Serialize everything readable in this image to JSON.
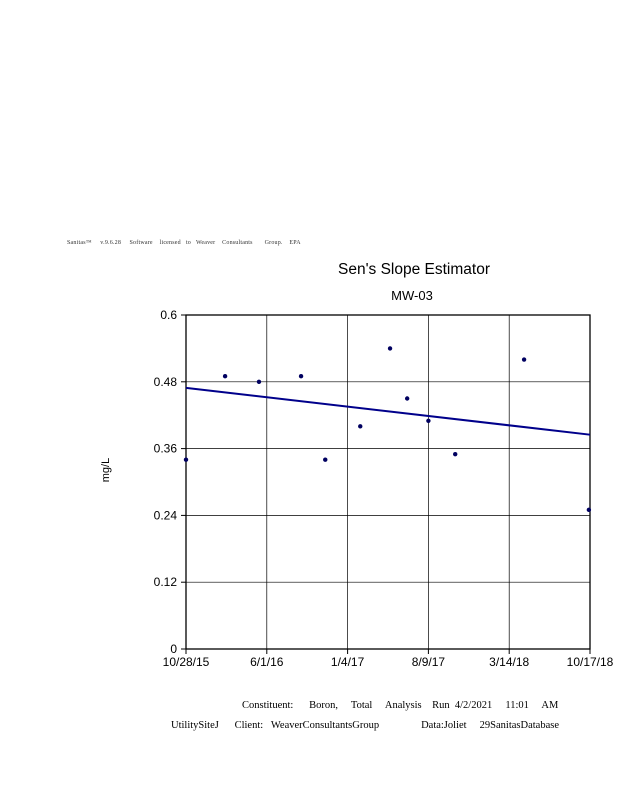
{
  "branding_line": "Sanitas™     v.9.6.28     Software    licensed   to   Weaver    Consultants       Group.    EPA",
  "chart_data": {
    "type": "scatter",
    "title": "Sen's Slope Estimator",
    "subtitle": "MW-03",
    "xlabel": "",
    "ylabel": "mg/L",
    "ylim": [
      0,
      0.6
    ],
    "y_ticks": [
      0,
      0.12,
      0.24,
      0.36,
      0.48,
      0.6
    ],
    "x_tick_labels": [
      "10/28/15",
      "6/1/16",
      "1/4/17",
      "8/9/17",
      "3/14/18",
      "10/17/18"
    ],
    "x_range": [
      "10/28/15",
      "10/17/18"
    ],
    "grid": true,
    "legend": "none",
    "series": [
      {
        "name": "Boron, Total measurements",
        "type": "scatter",
        "color": "#000060",
        "points": [
          {
            "date": "10/28/15",
            "value": 0.34
          },
          {
            "date": "2/10/16",
            "value": 0.49
          },
          {
            "date": "5/11/16",
            "value": 0.48
          },
          {
            "date": "9/1/16",
            "value": 0.49
          },
          {
            "date": "11/5/16",
            "value": 0.34
          },
          {
            "date": "2/7/17",
            "value": 0.4
          },
          {
            "date": "4/28/17",
            "value": 0.54
          },
          {
            "date": "6/13/17",
            "value": 0.45
          },
          {
            "date": "8/9/17",
            "value": 0.41
          },
          {
            "date": "10/20/17",
            "value": 0.35
          },
          {
            "date": "4/23/18",
            "value": 0.52
          },
          {
            "date": "10/14/18",
            "value": 0.25
          }
        ]
      },
      {
        "name": "Sen's slope trend line",
        "type": "line",
        "color": "#00008B",
        "points": [
          {
            "date": "10/28/15",
            "value": 0.469
          },
          {
            "date": "10/17/18",
            "value": 0.385
          }
        ]
      }
    ]
  },
  "footer": {
    "line1": "Constituent:      Boron,     Total     Analysis    Run  4/2/2021     11:01     AM",
    "line2": "UtilitySiteJ      Client:   WeaverConsultantsGroup                Data:Joliet     29SanitasDatabase"
  }
}
